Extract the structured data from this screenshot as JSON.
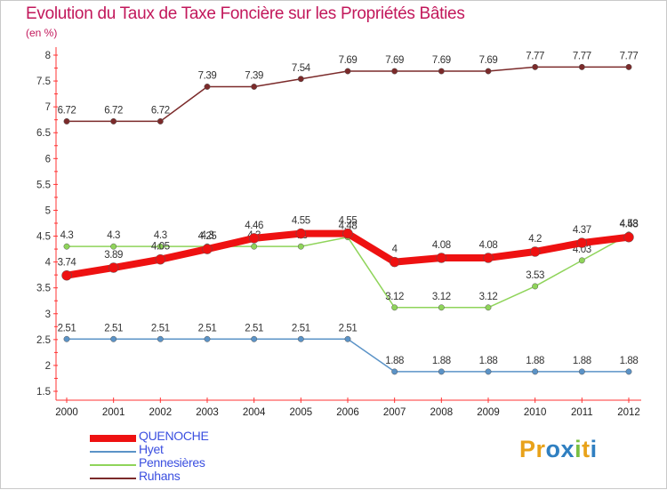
{
  "chart_data": {
    "type": "line",
    "title": "Evolution du Taux de Taxe Foncière sur les Propriétés Bâties",
    "unit_label": "(en %)",
    "xlabel": "",
    "ylabel": "(en %)",
    "categories": [
      "2000",
      "2001",
      "2002",
      "2003",
      "2004",
      "2005",
      "2006",
      "2007",
      "2008",
      "2009",
      "2010",
      "2011",
      "2012"
    ],
    "ylim": [
      1.5,
      8
    ],
    "yticks": [
      "1.5",
      "2",
      "2.5",
      "3",
      "3.5",
      "4",
      "4.5",
      "5",
      "5.5",
      "6",
      "6.5",
      "7",
      "7.5",
      "8"
    ],
    "grid": false,
    "legend_position": "bottom-left",
    "series": [
      {
        "name": "Ruhans",
        "color": "#7b2a2a",
        "values": [
          6.72,
          6.72,
          6.72,
          7.39,
          7.39,
          7.54,
          7.69,
          7.69,
          7.69,
          7.69,
          7.77,
          7.77,
          7.77
        ],
        "labels": [
          "6.72",
          "6.72",
          "6.72",
          "7.39",
          "7.39",
          "7.54",
          "7.69",
          "7.69",
          "7.69",
          "7.69",
          "7.77",
          "7.77",
          "7.77"
        ]
      },
      {
        "name": "Hyet",
        "color": "#5b93c7",
        "values": [
          2.51,
          2.51,
          2.51,
          2.51,
          2.51,
          2.51,
          2.51,
          1.88,
          1.88,
          1.88,
          1.88,
          1.88,
          1.88
        ],
        "labels": [
          "2.51",
          "2.51",
          "2.51",
          "2.51",
          "2.51",
          "2.51",
          "2.51",
          "1.88",
          "1.88",
          "1.88",
          "1.88",
          "1.88",
          "1.88"
        ]
      },
      {
        "name": "Pennesières",
        "color": "#8fd45a",
        "values": [
          4.3,
          4.3,
          4.3,
          4.3,
          4.3,
          4.3,
          4.48,
          3.12,
          3.12,
          3.12,
          3.53,
          4.03,
          4.53
        ],
        "labels": [
          "4.3",
          "4.3",
          "4.3",
          "4.3",
          "4.3",
          "4.3",
          "4.48",
          "3.12",
          "3.12",
          "3.12",
          "3.53",
          "4.03",
          "4.53"
        ]
      },
      {
        "name": "QUENOCHE",
        "color": "#ee1111",
        "values": [
          3.74,
          3.89,
          4.05,
          4.25,
          4.46,
          4.55,
          4.55,
          4.0,
          4.08,
          4.08,
          4.2,
          4.37,
          4.48
        ],
        "labels": [
          "3.74",
          "3.89",
          "4.05",
          "4.25",
          "4.46",
          "4.55",
          "4.55",
          "4",
          "4.08",
          "4.08",
          "4.2",
          "4.37",
          "4.48"
        ]
      }
    ]
  },
  "legend": {
    "items": [
      {
        "name": "QUENOCHE",
        "color": "#ee1111"
      },
      {
        "name": "Hyet",
        "color": "#5b93c7"
      },
      {
        "name": "Pennesières",
        "color": "#8fd45a"
      },
      {
        "name": "Ruhans",
        "color": "#7b2a2a"
      }
    ]
  },
  "logo": {
    "text": "Proxiti",
    "letters": [
      {
        "ch": "P",
        "color": "#e8a21a"
      },
      {
        "ch": "r",
        "color": "#e8a21a"
      },
      {
        "ch": "o",
        "color": "#2f7fc1"
      },
      {
        "ch": "x",
        "color": "#2f7fc1"
      },
      {
        "ch": "i",
        "color": "#7ac043"
      },
      {
        "ch": "t",
        "color": "#e8a21a"
      },
      {
        "ch": "i",
        "color": "#2f7fc1"
      }
    ]
  }
}
